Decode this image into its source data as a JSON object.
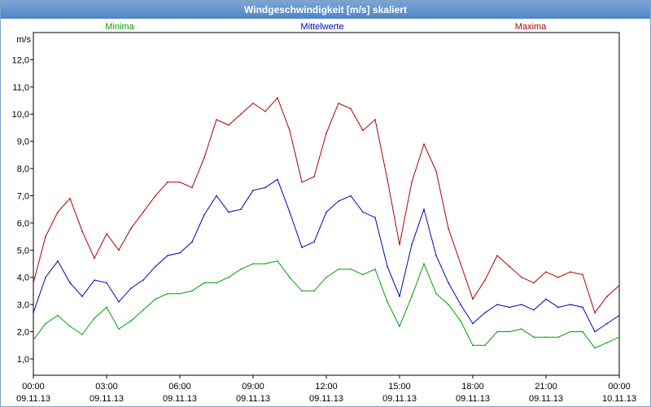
{
  "window": {
    "title": "Windgeschwindigkeit [m/s] skaliert"
  },
  "colors": {
    "minima": "#00a000",
    "mittel": "#0000c0",
    "maxima": "#b00000",
    "grid": "#000000",
    "titlebar": "#4f86c6"
  },
  "chart_data": {
    "type": "line",
    "title": "Windgeschwindigkeit [m/s] skaliert",
    "ylabel": "m/s",
    "xlabel": "",
    "ylim": [
      0.4,
      13.0
    ],
    "xlim_hours": [
      0,
      24
    ],
    "grid": true,
    "legend_placement": "top",
    "y_ticks": [
      "1,0",
      "2,0",
      "3,0",
      "4,0",
      "5,0",
      "6,0",
      "7,0",
      "8,0",
      "9,0",
      "10,0",
      "11,0",
      "12,0"
    ],
    "x_ticks": [
      {
        "time": "00:00",
        "date": "09.11.13"
      },
      {
        "time": "03:00",
        "date": "09.11.13"
      },
      {
        "time": "06:00",
        "date": "09.11.13"
      },
      {
        "time": "09:00",
        "date": "09.11.13"
      },
      {
        "time": "12:00",
        "date": "09.11.13"
      },
      {
        "time": "15:00",
        "date": "09.11.13"
      },
      {
        "time": "18:00",
        "date": "09.11.13"
      },
      {
        "time": "21:00",
        "date": "09.11.13"
      },
      {
        "time": "00:00",
        "date": "10.11.13"
      }
    ],
    "x_hours": [
      0,
      0.5,
      1,
      1.5,
      2,
      2.5,
      3,
      3.5,
      4,
      4.5,
      5,
      5.5,
      6,
      6.5,
      7,
      7.5,
      8,
      8.5,
      9,
      9.5,
      10,
      10.5,
      11,
      11.5,
      12,
      12.5,
      13,
      13.5,
      14,
      14.5,
      15,
      15.5,
      16,
      16.5,
      17,
      17.5,
      18,
      18.5,
      19,
      19.5,
      20,
      20.5,
      21,
      21.5,
      22,
      22.5,
      23,
      23.5,
      24
    ],
    "series": [
      {
        "name": "Minima",
        "color": "#00a000",
        "values": [
          1.7,
          2.3,
          2.6,
          2.2,
          1.9,
          2.5,
          2.9,
          2.1,
          2.4,
          2.8,
          3.2,
          3.4,
          3.4,
          3.5,
          3.8,
          3.8,
          4.0,
          4.3,
          4.5,
          4.5,
          4.6,
          4.0,
          3.5,
          3.5,
          4.0,
          4.3,
          4.3,
          4.1,
          4.3,
          3.1,
          2.2,
          3.3,
          4.5,
          3.4,
          3.0,
          2.4,
          1.5,
          1.5,
          2.0,
          2.0,
          2.1,
          1.8,
          1.8,
          1.8,
          2.0,
          2.0,
          1.4,
          1.6,
          1.8
        ]
      },
      {
        "name": "Mittelwerte",
        "color": "#0000c0",
        "values": [
          2.7,
          4.0,
          4.6,
          3.8,
          3.3,
          3.9,
          3.8,
          3.1,
          3.6,
          3.9,
          4.4,
          4.8,
          4.9,
          5.3,
          6.3,
          7.0,
          6.4,
          6.5,
          7.2,
          7.3,
          7.6,
          6.4,
          5.1,
          5.3,
          6.4,
          6.8,
          7.0,
          6.4,
          6.2,
          4.4,
          3.3,
          5.2,
          6.5,
          4.8,
          3.8,
          3.0,
          2.3,
          2.7,
          3.0,
          2.9,
          3.0,
          2.8,
          3.2,
          2.9,
          3.0,
          2.9,
          2.0,
          2.3,
          2.6
        ]
      },
      {
        "name": "Maxima",
        "color": "#b00000",
        "values": [
          3.8,
          5.5,
          6.4,
          6.9,
          5.7,
          4.7,
          5.6,
          5.0,
          5.8,
          6.4,
          7.0,
          7.5,
          7.5,
          7.3,
          8.4,
          9.8,
          9.6,
          10.0,
          10.4,
          10.1,
          10.6,
          9.4,
          7.5,
          7.7,
          9.3,
          10.4,
          10.2,
          9.4,
          9.8,
          7.6,
          5.2,
          7.5,
          8.9,
          7.9,
          5.8,
          4.5,
          3.2,
          3.9,
          4.8,
          4.4,
          4.0,
          3.8,
          4.2,
          4.0,
          4.2,
          4.1,
          2.7,
          3.3,
          3.7
        ]
      }
    ]
  }
}
